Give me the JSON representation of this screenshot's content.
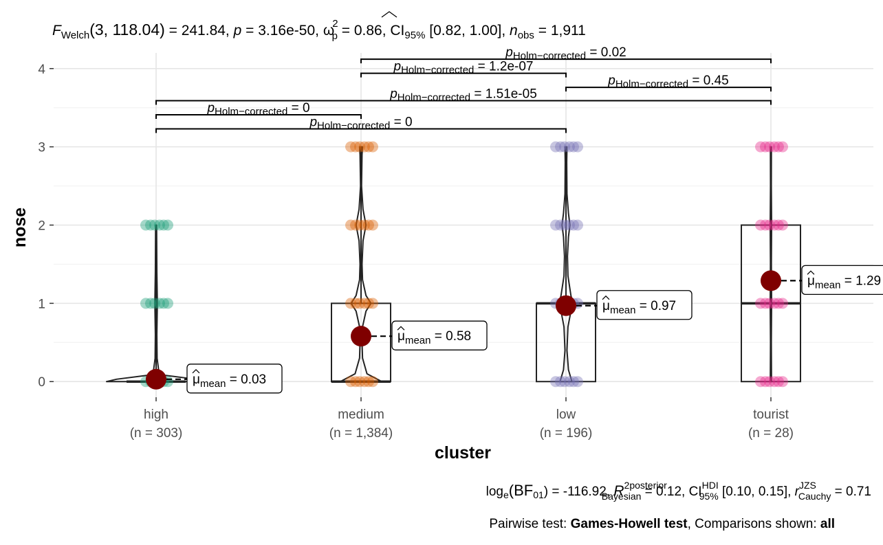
{
  "chart_data": {
    "type": "violin-box-scatter",
    "title": "F_Welch(3, 118.04) = 241.84, p = 3.16e-50, ω²p = 0.86, CI95% [0.82, 1.00], n_obs = 1,911",
    "title_parts": {
      "stat_name": "F",
      "stat_sub": "Welch",
      "stat_args": "(3, 118.04)",
      "stat_value": " = 241.84, ",
      "p_label": "p",
      "p_value": " = 3.16e-50, ",
      "effect_name": "ω",
      "effect_sup": "2",
      "effect_sub": "p",
      "effect_value": " = 0.86, CI",
      "ci_sub": "95%",
      "ci_value": " [0.82, 1.00], ",
      "n_label": "n",
      "n_sub": "obs",
      "n_value": " = 1,911"
    },
    "xlabel": "cluster",
    "ylabel": "nose",
    "ylim": [
      -0.2,
      4.2
    ],
    "yticks": [
      0,
      1,
      2,
      3,
      4
    ],
    "grid": true,
    "categories": [
      {
        "name": "high",
        "n_label": "(n = 303)",
        "mean": 0.03,
        "mean_label": "0.03",
        "color": "#1B9E77",
        "box": {
          "q1": 0,
          "median": 0,
          "q3": 0
        },
        "whisker_max": 2,
        "points": [
          0,
          1,
          2
        ],
        "violin": [
          [
            0,
            1.0
          ],
          [
            0.03,
            0.8
          ],
          [
            0.08,
            0.18
          ],
          [
            0.15,
            0.05
          ],
          [
            0.3,
            0.02
          ],
          [
            0.6,
            0.015
          ],
          [
            1.0,
            0.025
          ],
          [
            1.4,
            0.015
          ],
          [
            2.0,
            0.01
          ]
        ]
      },
      {
        "name": "medium",
        "n_label": "(n = 1,384)",
        "mean": 0.58,
        "mean_label": "0.58",
        "color": "#D95F02",
        "box": {
          "q1": 0,
          "median": 0,
          "q3": 1
        },
        "whisker_max": 3,
        "points": [
          0,
          1,
          2,
          3
        ],
        "violin": [
          [
            0,
            0.42
          ],
          [
            0.1,
            0.12
          ],
          [
            0.3,
            0.03
          ],
          [
            0.5,
            0.02
          ],
          [
            0.7,
            0.03
          ],
          [
            0.9,
            0.1
          ],
          [
            1.0,
            0.2
          ],
          [
            1.1,
            0.1
          ],
          [
            1.3,
            0.03
          ],
          [
            1.5,
            0.02
          ],
          [
            1.8,
            0.04
          ],
          [
            2.0,
            0.1
          ],
          [
            2.2,
            0.04
          ],
          [
            2.5,
            0.01
          ],
          [
            2.9,
            0.02
          ],
          [
            3.0,
            0.03
          ]
        ]
      },
      {
        "name": "low",
        "n_label": "(n = 196)",
        "mean": 0.97,
        "mean_label": "0.97",
        "color": "#7570B3",
        "box": {
          "q1": 0,
          "median": 1,
          "q3": 1
        },
        "whisker_max": 3,
        "points": [
          0,
          1,
          2,
          3
        ],
        "violin": [
          [
            0,
            0.12
          ],
          [
            0.15,
            0.05
          ],
          [
            0.4,
            0.02
          ],
          [
            0.7,
            0.04
          ],
          [
            0.9,
            0.1
          ],
          [
            1.0,
            0.14
          ],
          [
            1.1,
            0.1
          ],
          [
            1.35,
            0.04
          ],
          [
            1.6,
            0.03
          ],
          [
            1.85,
            0.05
          ],
          [
            2.0,
            0.08
          ],
          [
            2.15,
            0.05
          ],
          [
            2.4,
            0.02
          ],
          [
            2.8,
            0.015
          ],
          [
            3.0,
            0.02
          ]
        ]
      },
      {
        "name": "tourist",
        "n_label": "(n = 28)",
        "mean": 1.29,
        "mean_label": "1.29",
        "color": "#E7298A",
        "box": {
          "q1": 0,
          "median": 1,
          "q3": 2
        },
        "whisker_max": 3,
        "points": [
          0,
          1,
          2,
          3
        ],
        "violin": [
          [
            0,
            0.012
          ],
          [
            0.5,
            0.008
          ],
          [
            1.0,
            0.014
          ],
          [
            1.5,
            0.009
          ],
          [
            2.0,
            0.014
          ],
          [
            2.5,
            0.008
          ],
          [
            3.0,
            0.01
          ]
        ]
      }
    ],
    "mean_prefix": "μ",
    "mean_sub": "mean",
    "pairwise": [
      {
        "from": "high",
        "to": "medium",
        "y": 3.41,
        "label_head": "p",
        "label_sub": "Holm−corrected",
        "label_value": " = 0"
      },
      {
        "from": "high",
        "to": "low",
        "y": 3.23,
        "label_head": "p",
        "label_sub": "Holm−corrected",
        "label_value": " = 0"
      },
      {
        "from": "high",
        "to": "tourist",
        "y": 3.59,
        "label_head": "p",
        "label_sub": "Holm−corrected",
        "label_value": " = 1.51e-05"
      },
      {
        "from": "medium",
        "to": "low",
        "y": 3.94,
        "label_head": "p",
        "label_sub": "Holm−corrected",
        "label_value": " = 1.2e-07"
      },
      {
        "from": "low",
        "to": "tourist",
        "y": 3.76,
        "label_head": "p",
        "label_sub": "Holm−corrected",
        "label_value": " = 0.45"
      },
      {
        "from": "medium",
        "to": "tourist",
        "y": 4.12,
        "label_head": "p",
        "label_sub": "Holm−corrected",
        "label_value": " = 0.02"
      }
    ],
    "subtitle_bayes": {
      "lead": "log",
      "lead_sub": "e",
      "bf": "(BF",
      "bf_sub": "01",
      "bf_value": ") = -116.92, ",
      "r2": "R",
      "r2_sup": "2",
      "r2_sup2": "posterior",
      "r2_sub": "Bayesian",
      "r2_value": " = 0.12, CI",
      "ci_sup": "HDI",
      "ci_sub": "95%",
      "ci_value": " [0.10, 0.15], ",
      "r": "r",
      "r_sup": "JZS",
      "r_sub": "Cauchy",
      "r_value": " = 0.71"
    },
    "caption": {
      "prefix": "Pairwise test: ",
      "test": "Games-Howell test",
      "middle": ", Comparisons shown: ",
      "shown": "all"
    }
  }
}
